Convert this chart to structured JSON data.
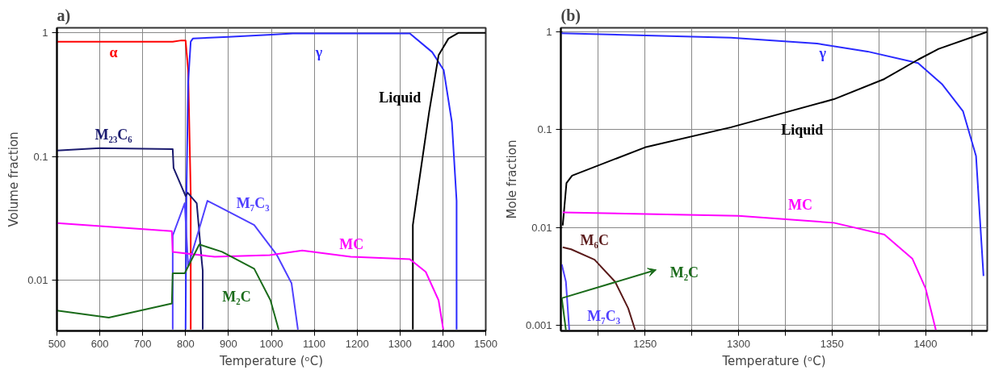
{
  "chart_data": [
    {
      "type": "line",
      "title": "a)",
      "xlabel": "Temperature (ᵒC)",
      "ylabel": "Volume fraction",
      "xlim": [
        500,
        1500
      ],
      "ylim": [
        0.0039,
        1.1
      ],
      "xticks": [
        500,
        600,
        700,
        800,
        900,
        1000,
        1100,
        1200,
        1300,
        1400,
        1500
      ],
      "yticks": [
        0.01,
        0.1,
        1
      ],
      "log": "y",
      "grid": true,
      "series": [
        {
          "name": "α",
          "color": "#ff0000",
          "x": [
            500,
            770,
            790,
            800,
            806,
            812,
            812
          ],
          "values": [
            0.85,
            0.85,
            0.87,
            0.87,
            0.5,
            0.05,
            0.004
          ]
        },
        {
          "name": "γ",
          "color": "#2a2aff",
          "x": [
            800,
            802,
            806,
            812,
            817,
            900,
            1000,
            1050,
            1323,
            1375,
            1402,
            1421,
            1432,
            1432
          ],
          "values": [
            0.004,
            0.05,
            0.4,
            0.85,
            0.9,
            0.93,
            0.97,
            0.99,
            0.99,
            0.7,
            0.5,
            0.19,
            0.044,
            0.004
          ]
        },
        {
          "name": "Liquid",
          "color": "#000000",
          "x": [
            1330,
            1330,
            1338,
            1368,
            1390,
            1413,
            1436,
            1500
          ],
          "values": [
            0.004,
            0.028,
            0.044,
            0.23,
            0.66,
            0.9,
            1.0,
            1.0
          ]
        },
        {
          "name": "M₂₃C₆",
          "color": "#1a1a6e",
          "x": [
            500,
            600,
            770,
            772,
            800,
            805,
            826,
            838,
            840,
            840
          ],
          "values": [
            0.112,
            0.117,
            0.115,
            0.081,
            0.048,
            0.051,
            0.042,
            0.014,
            0.012,
            0.004
          ]
        },
        {
          "name": "M₇C₃",
          "color": "#5040ff",
          "x": [
            770,
            770,
            798,
            806,
            851,
            960,
            1013,
            1047,
            1062
          ],
          "values": [
            0.004,
            0.023,
            0.042,
            0.013,
            0.044,
            0.028,
            0.016,
            0.0095,
            0.004
          ]
        },
        {
          "name": "MC",
          "color": "#ff00ff",
          "x": [
            500,
            768,
            770,
            868,
            996,
            1072,
            1185,
            1323,
            1360,
            1390,
            1401
          ],
          "values": [
            0.029,
            0.025,
            0.017,
            0.0155,
            0.016,
            0.0174,
            0.0155,
            0.0148,
            0.0117,
            0.0069,
            0.004
          ]
        },
        {
          "name": "M₂C",
          "color": "#1a6b1a",
          "x": [
            500,
            621,
            768,
            770,
            798,
            832,
            885,
            960,
            998,
            1017
          ],
          "values": [
            0.0057,
            0.005,
            0.0065,
            0.0114,
            0.0114,
            0.0195,
            0.017,
            0.0124,
            0.0069,
            0.004
          ]
        }
      ]
    },
    {
      "type": "line",
      "title": "(b)",
      "xlabel": "Temperature (ᵒC)",
      "ylabel": "Mole fraction",
      "xlim": [
        1205,
        1433
      ],
      "ylim": [
        0.00088,
        1.1
      ],
      "xticks": [
        {
          "value": 1225,
          "label": null
        },
        1250,
        {
          "value": 1275,
          "label": null
        },
        1300,
        {
          "value": 1325,
          "label": null
        },
        1350,
        {
          "value": 1375,
          "label": null
        },
        1400,
        {
          "value": 1425,
          "label": null
        }
      ],
      "yticks": [
        0.001,
        0.01,
        0.1,
        1
      ],
      "log": "y",
      "grid": true,
      "series": [
        {
          "name": "γ",
          "color": "#2a2aff",
          "x": [
            1205,
            1296,
            1342,
            1369,
            1396,
            1409,
            1420,
            1427,
            1431
          ],
          "values": [
            0.97,
            0.87,
            0.76,
            0.63,
            0.48,
            0.29,
            0.155,
            0.054,
            0.0032
          ]
        },
        {
          "name": "Liquid",
          "color": "#000000",
          "x": [
            1206,
            1208,
            1211,
            1250,
            1296,
            1351,
            1378,
            1396,
            1407,
            1433
          ],
          "values": [
            0.0105,
            0.0285,
            0.034,
            0.066,
            0.106,
            0.205,
            0.33,
            0.52,
            0.67,
            1.0
          ]
        },
        {
          "name": "MC",
          "color": "#ff00ff",
          "x": [
            1206,
            1300,
            1351,
            1378,
            1393,
            1400,
            1405.5
          ],
          "values": [
            0.0143,
            0.0132,
            0.0112,
            0.0085,
            0.0048,
            0.0024,
            0.0009
          ]
        },
        {
          "name": "M₆C",
          "color": "#5a1a1a",
          "x": [
            1206,
            1210.5,
            1223,
            1234,
            1241,
            1244.7
          ],
          "values": [
            0.0063,
            0.006,
            0.0047,
            0.0028,
            0.0015,
            0.0009
          ]
        },
        {
          "name": "M₂C",
          "color": "#1a6b1a",
          "x": [
            1205.5,
            1207.7
          ],
          "values": [
            0.0019,
            0.0009
          ]
        },
        {
          "name": "M₇C₃",
          "color": "#5040ff",
          "x": [
            1205.5,
            1207.7,
            1209.5
          ],
          "values": [
            0.0042,
            0.0028,
            0.0009
          ]
        }
      ]
    }
  ]
}
